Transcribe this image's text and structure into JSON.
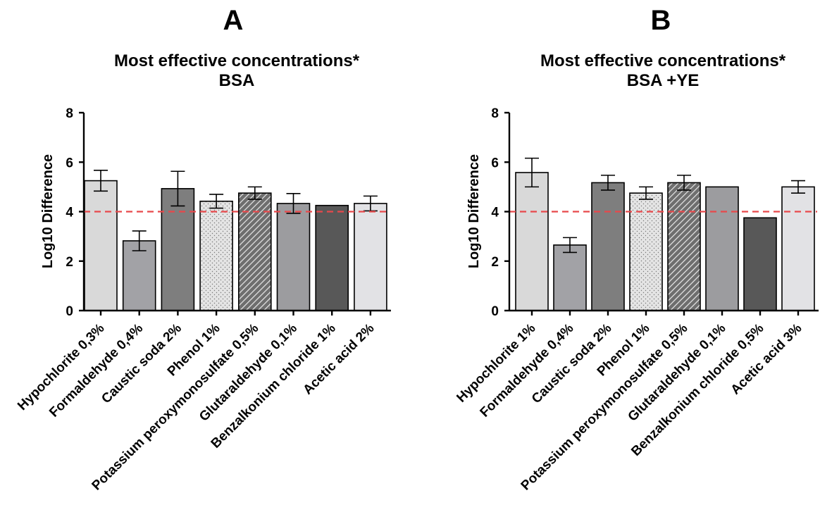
{
  "colors": {
    "threshold_line": "#e8484b",
    "bar_outline": "#000000",
    "bar_fills": [
      "#d9d9d9",
      "#a2a2a6",
      "#7e7e7e",
      "#e4e4e4",
      "#c9c9c9",
      "#9c9c9f",
      "#585858",
      "#e2e2e5"
    ],
    "bar_patterns": [
      "solid",
      "solid",
      "solid",
      "dots",
      "diagonal-hatch",
      "solid",
      "solid",
      "solid"
    ]
  },
  "chart_data": [
    {
      "panel": "A",
      "type": "bar",
      "title": [
        "Most effective concentrations*",
        "BSA"
      ],
      "xlabel": "",
      "ylabel": "Log10 Difference",
      "ylim": [
        0,
        8
      ],
      "yticks": [
        "0",
        "2",
        "4",
        "6",
        "8"
      ],
      "threshold": 4,
      "categories": [
        "Hypochlorite 0,3%",
        "Formaldehyde 0,4%",
        "Caustic soda 2%",
        "Phenol 1%",
        "Potassium peroxymonosulfate 0,5%",
        "Glutaraldehyde 0,1%",
        "Benzalkonium chloride 1%",
        "Acetic acid 2%"
      ],
      "values": [
        5.25,
        2.82,
        4.93,
        4.42,
        4.75,
        4.33,
        4.25,
        4.33
      ],
      "errors": [
        0.42,
        0.4,
        0.7,
        0.28,
        0.25,
        0.4,
        0,
        0.3
      ]
    },
    {
      "panel": "B",
      "type": "bar",
      "title": [
        "Most effective concentrations*",
        "BSA +YE"
      ],
      "xlabel": "",
      "ylabel": "Log10 Difference",
      "ylim": [
        0,
        8
      ],
      "yticks": [
        "0",
        "2",
        "4",
        "6",
        "8"
      ],
      "threshold": 4,
      "categories": [
        "Hypochlorite 1%",
        "Formaldehyde 0,4%",
        "Caustic soda 2%",
        "Phenol 1%",
        "Potassium peroxymonosulfate 0,5%",
        "Glutaraldehyde 0,1%",
        "Benzalkonium chloride 0,5%",
        "Acetic acid 3%"
      ],
      "values": [
        5.58,
        2.65,
        5.17,
        4.75,
        5.17,
        5.0,
        3.75,
        5.0
      ],
      "errors": [
        0.58,
        0.3,
        0.3,
        0.25,
        0.3,
        0,
        0,
        0.25
      ]
    }
  ]
}
